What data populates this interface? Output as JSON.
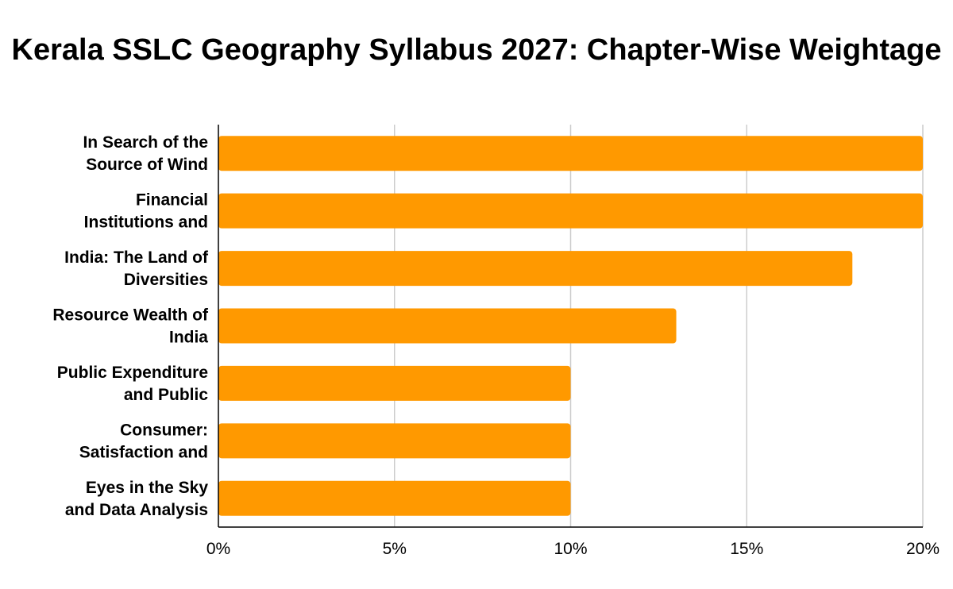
{
  "chart_data": {
    "type": "bar",
    "orientation": "horizontal",
    "title": "Kerala SSLC Geography Syllabus 2027: Chapter-Wise Weightage",
    "xlabel": "",
    "ylabel": "",
    "categories": [
      [
        "In Search of the",
        "Source of Wind"
      ],
      [
        "Financial",
        "Institutions and"
      ],
      [
        "India: The Land of",
        "Diversities"
      ],
      [
        "Resource Wealth of",
        "India"
      ],
      [
        "Public Expenditure",
        "and Public"
      ],
      [
        "Consumer:",
        "Satisfaction and"
      ],
      [
        "Eyes in the Sky",
        "and Data Analysis"
      ]
    ],
    "values": [
      20,
      20,
      18,
      13,
      10,
      10,
      10
    ],
    "xlim": [
      0,
      20
    ],
    "xticks": [
      0,
      5,
      10,
      15,
      20
    ],
    "xtick_labels": [
      "0%",
      "5%",
      "10%",
      "15%",
      "20%"
    ],
    "grid": true,
    "legend": "none",
    "bar_color": "#ff9900"
  }
}
